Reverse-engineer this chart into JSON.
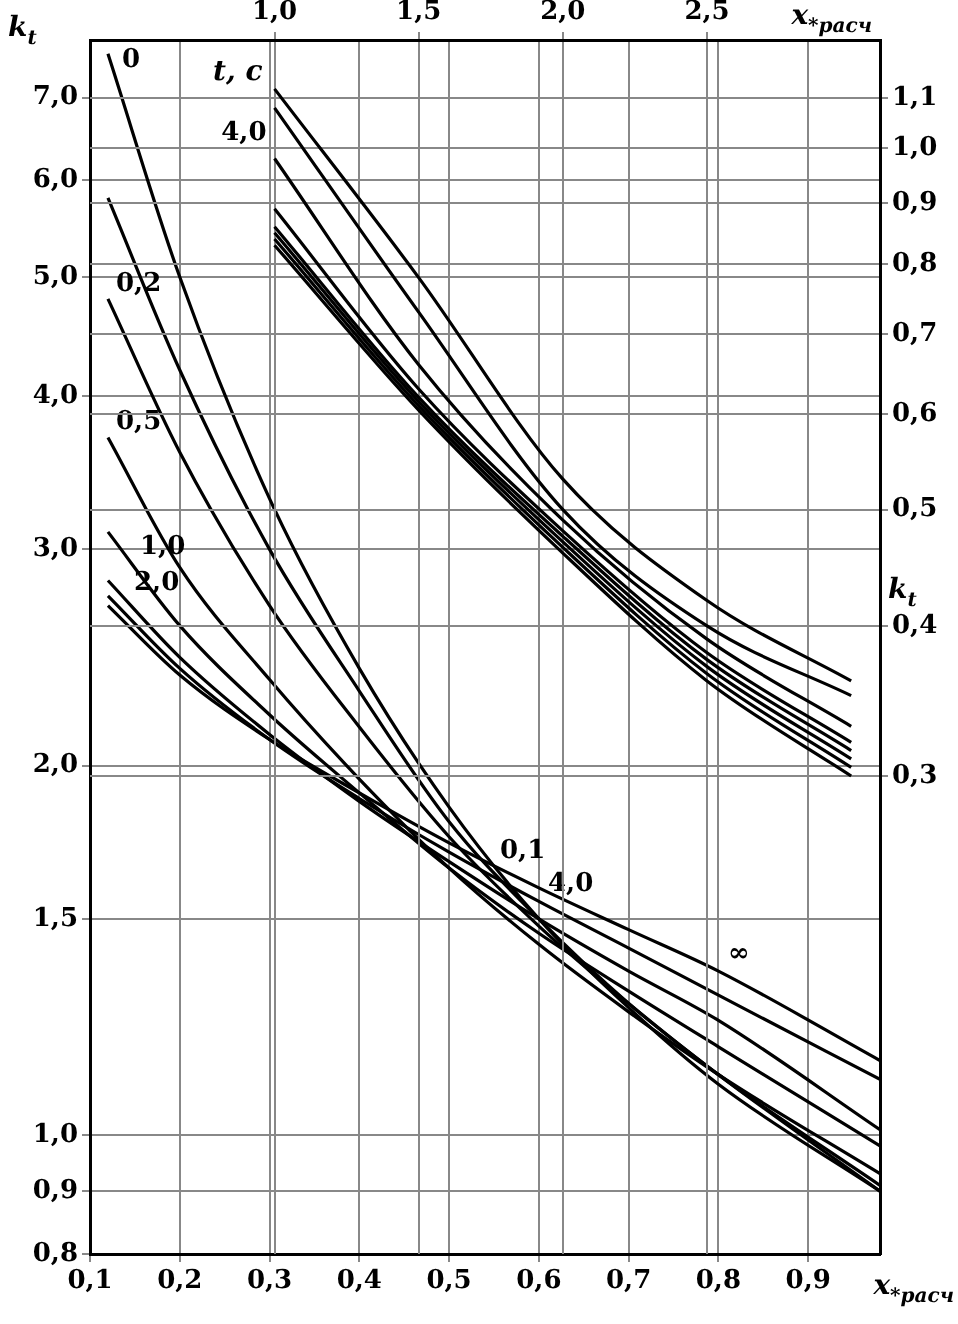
{
  "chart_data": [
    {
      "type": "line",
      "xlabel": "x$_{*расч}$",
      "ylabel": "k$_{t}$",
      "x": [
        0.12,
        0.2,
        0.3,
        0.4,
        0.5,
        0.6,
        0.7,
        0.8,
        0.98
      ],
      "series": [
        {
          "name": "0",
          "color": "#000000",
          "values": [
            7.6,
            5.0,
            3.3,
            2.4,
            1.85,
            1.5,
            1.27,
            1.1,
            0.9
          ]
        },
        {
          "name": "0,1",
          "color": "#000000",
          "values": [
            5.8,
            4.2,
            3.0,
            2.3,
            1.8,
            1.5,
            1.28,
            1.12,
            0.9
          ]
        },
        {
          "name": "0,2",
          "color": "#000000",
          "values": [
            4.8,
            3.6,
            2.7,
            2.15,
            1.75,
            1.48,
            1.28,
            1.12,
            0.91
          ]
        },
        {
          "name": "0,5",
          "color": "#000000",
          "values": [
            3.7,
            2.9,
            2.35,
            1.95,
            1.65,
            1.43,
            1.26,
            1.12,
            0.93
          ]
        },
        {
          "name": "1,0",
          "color": "#000000",
          "values": [
            3.1,
            2.6,
            2.2,
            1.9,
            1.65,
            1.46,
            1.31,
            1.18,
            0.98
          ]
        },
        {
          "name": "2,0",
          "color": "#000000",
          "values": [
            2.83,
            2.45,
            2.12,
            1.87,
            1.67,
            1.5,
            1.36,
            1.24,
            1.01
          ]
        },
        {
          "name": "4,0",
          "color": "#000000",
          "values": [
            2.75,
            2.4,
            2.1,
            1.88,
            1.7,
            1.55,
            1.42,
            1.3,
            1.11
          ]
        },
        {
          "name": "∞",
          "color": "#000000",
          "values": [
            2.7,
            2.37,
            2.1,
            1.9,
            1.73,
            1.59,
            1.47,
            1.36,
            1.15
          ]
        }
      ],
      "xlim": [
        0.1,
        0.98
      ],
      "xticks": [
        {
          "value": 0.1,
          "label": "0,1"
        },
        {
          "value": 0.2,
          "label": "0,2"
        },
        {
          "value": 0.3,
          "label": "0,3"
        },
        {
          "value": 0.4,
          "label": "0,4"
        },
        {
          "value": 0.5,
          "label": "0,5"
        },
        {
          "value": 0.6,
          "label": "0,6"
        },
        {
          "value": 0.7,
          "label": "0,7"
        },
        {
          "value": 0.8,
          "label": "0,8"
        },
        {
          "value": 0.9,
          "label": "0,9"
        }
      ],
      "ylim": [
        0.8,
        7.8
      ],
      "yticks": [
        {
          "value": 0.8,
          "label": "0,8"
        },
        {
          "value": 0.9,
          "label": "0,9"
        },
        {
          "value": 1.0,
          "label": "1,0"
        },
        {
          "value": 1.5,
          "label": "1,5"
        },
        {
          "value": 2.0,
          "label": "2,0"
        },
        {
          "value": 3.0,
          "label": "3,0"
        },
        {
          "value": 4.0,
          "label": "4,0"
        },
        {
          "value": 5.0,
          "label": "5,0"
        },
        {
          "value": 6.0,
          "label": "6,0"
        },
        {
          "value": 7.0,
          "label": "7,0"
        }
      ],
      "log": "y",
      "grid": true,
      "legend": false,
      "marker": "none",
      "line_style": "solid"
    },
    {
      "type": "line",
      "xlabel": "x$_{*расч}$",
      "ylabel": "k$_{t}$",
      "legend_title": "t, с",
      "annotations": [
        {
          "text": "4,0",
          "x": 1.0,
          "y": 1.12
        }
      ],
      "x": [
        1.0,
        1.5,
        2.0,
        2.5,
        3.0
      ],
      "series": [
        {
          "color": "#000000",
          "values": [
            1.12,
            0.78,
            0.53,
            0.42,
            0.36
          ]
        },
        {
          "color": "#000000",
          "values": [
            1.08,
            0.73,
            0.5,
            0.4,
            0.35
          ]
        },
        {
          "color": "#000000",
          "values": [
            0.98,
            0.66,
            0.49,
            0.39,
            0.33
          ]
        },
        {
          "color": "#000000",
          "values": [
            0.89,
            0.63,
            0.48,
            0.38,
            0.32
          ]
        },
        {
          "color": "#000000",
          "values": [
            0.86,
            0.62,
            0.475,
            0.375,
            0.315
          ]
        },
        {
          "color": "#000000",
          "values": [
            0.85,
            0.615,
            0.47,
            0.37,
            0.31
          ]
        },
        {
          "color": "#000000",
          "values": [
            0.84,
            0.61,
            0.465,
            0.365,
            0.305
          ]
        },
        {
          "color": "#000000",
          "values": [
            0.83,
            0.605,
            0.46,
            0.36,
            0.3
          ]
        }
      ],
      "xlim": [
        0.36,
        3.1
      ],
      "xticks": [
        {
          "value": 1.0,
          "label": "1,0"
        },
        {
          "value": 1.5,
          "label": "1,5"
        },
        {
          "value": 2.0,
          "label": "2,0"
        },
        {
          "value": 2.5,
          "label": "2,5"
        }
      ],
      "ylim": [
        0.12,
        1.23
      ],
      "yticks": [
        {
          "value": 0.3,
          "label": "0,3"
        },
        {
          "value": 0.4,
          "label": "0,4"
        },
        {
          "value": 0.5,
          "label": "0,5"
        },
        {
          "value": 0.6,
          "label": "0,6"
        },
        {
          "value": 0.7,
          "label": "0,7"
        },
        {
          "value": 0.8,
          "label": "0,8"
        },
        {
          "value": 0.9,
          "label": "0,9"
        },
        {
          "value": 1.0,
          "label": "1,0"
        },
        {
          "value": 1.1,
          "label": "1,1"
        }
      ],
      "log": "y",
      "grid": true,
      "legend": false,
      "marker": "none",
      "line_style": "solid"
    }
  ]
}
